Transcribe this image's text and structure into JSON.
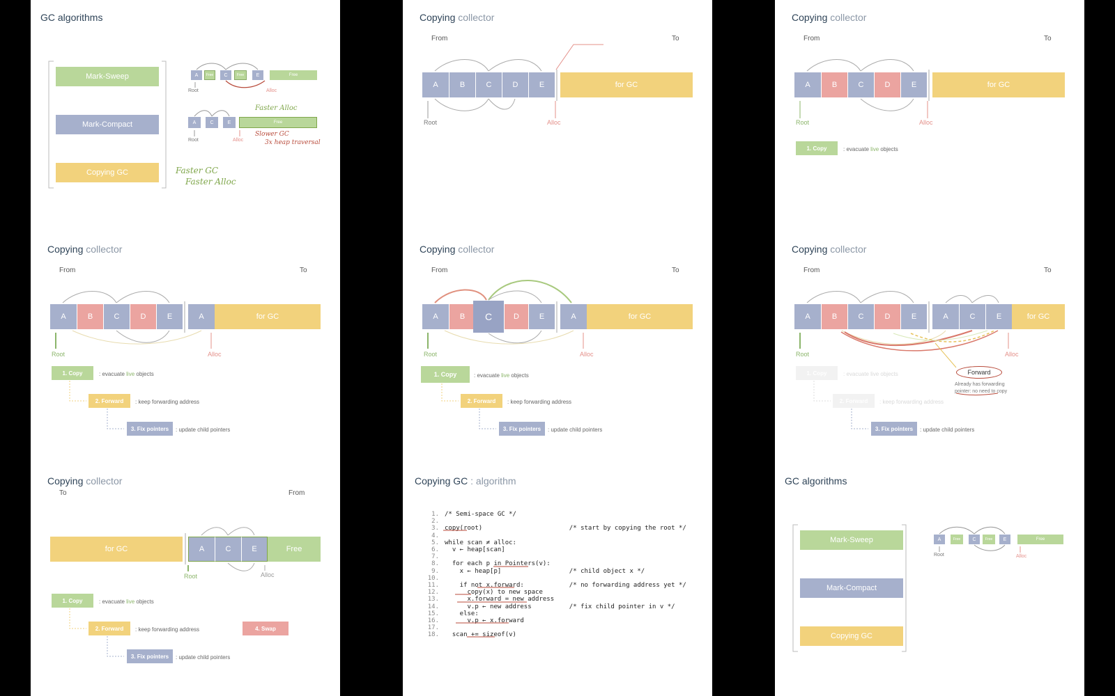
{
  "labels": {
    "gc_algorithms": "GC algorithms",
    "copying": "Copying",
    "collector": "collector",
    "copying_gc": "Copying GC",
    "algorithm_suffix": ": algorithm",
    "from": "From",
    "to": "To",
    "root": "Root",
    "alloc": "Alloc",
    "for_gc": "for GC",
    "free": "Free",
    "mark_sweep": "Mark-Sweep",
    "mark_compact": "Mark-Compact",
    "copying_gc_bar": "Copying GC",
    "obj_a": "A",
    "obj_b": "B",
    "obj_c": "C",
    "obj_d": "D",
    "obj_e": "E"
  },
  "steps": {
    "copy": "1. Copy",
    "copy_desc_pre": ": evacuate ",
    "copy_desc_live": "live",
    "copy_desc_post": " objects",
    "forward": "2. Forward",
    "forward_desc": ": keep forwarding address",
    "fix": "3. Fix pointers",
    "fix_desc": ": update child pointers",
    "swap": "4. Swap"
  },
  "annotations": {
    "faster_alloc": "Faster Alloc",
    "slower_gc": "Slower GC",
    "heap_traversal": "3x heap traversal",
    "faster_gc": "Faster GC",
    "faster_alloc2": "Faster Alloc",
    "forward_bubble": "Forward",
    "already_has": "Already has forwarding",
    "pointer_no_copy": "pointer: no need to copy"
  },
  "code": [
    {
      "n": "1.",
      "t": "/* Semi-space GC */"
    },
    {
      "n": "2.",
      "t": ""
    },
    {
      "n": "3.",
      "t": "copy(root)                       /* start by copying the root */"
    },
    {
      "n": "4.",
      "t": ""
    },
    {
      "n": "5.",
      "t": "while scan ≠ alloc:"
    },
    {
      "n": "6.",
      "t": "  v ← heap[scan]"
    },
    {
      "n": "7.",
      "t": ""
    },
    {
      "n": "8.",
      "t": "  for each p in Pointers(v):"
    },
    {
      "n": "9.",
      "t": "    x ← heap[p]                  /* child object x */"
    },
    {
      "n": "10.",
      "t": ""
    },
    {
      "n": "11.",
      "t": "    if not x.forward:            /* no forwarding address yet */"
    },
    {
      "n": "12.",
      "t": "      copy(x) to new space"
    },
    {
      "n": "13.",
      "t": "      x.forward = new address"
    },
    {
      "n": "14.",
      "t": "      v.p ← new address          /* fix child pointer in v */"
    },
    {
      "n": "15.",
      "t": "    else:"
    },
    {
      "n": "16.",
      "t": "      v.p ← x.forward"
    },
    {
      "n": "17.",
      "t": ""
    },
    {
      "n": "18.",
      "t": "  scan += sizeof(v)"
    }
  ],
  "colors": {
    "blue": "#a6b0cc",
    "red": "#eba4a0",
    "green": "#b9d79a",
    "yellow": "#f2d27c",
    "title": "#2f4458"
  }
}
